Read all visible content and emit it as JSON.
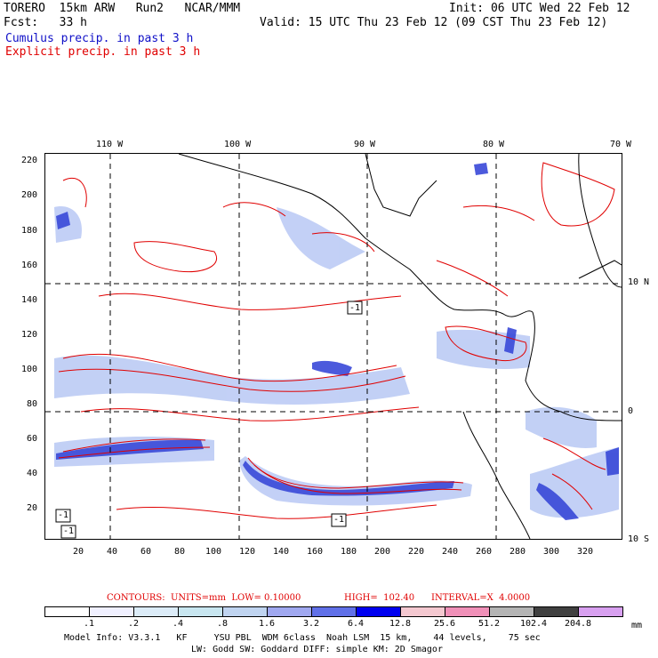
{
  "header": {
    "model": "TORERO  15km ARW   Run2   NCAR/MMM",
    "forecast": "Fcst:   33 h",
    "init": "Init: 06 UTC Wed 22 Feb 12",
    "valid": "Valid: 15 UTC Thu 23 Feb 12 (09 CST Thu 23 Feb 12)",
    "field1": "Cumulus precip. in past 3 h",
    "field2": "Explicit precip. in past 3 h"
  },
  "colors": {
    "cumulus": "#1010c8",
    "explicit": "#e00000"
  },
  "axes": {
    "lon_labels": [
      "110 W",
      "100 W",
      "90 W",
      "80 W",
      "70 W"
    ],
    "lat_labels": [
      "10 N",
      "0",
      "10 S"
    ],
    "y_ticks": [
      "220",
      "200",
      "180",
      "160",
      "140",
      "120",
      "100",
      "80",
      "60",
      "40",
      "20"
    ],
    "x_ticks": [
      "20",
      "40",
      "60",
      "80",
      "100",
      "120",
      "140",
      "160",
      "180",
      "200",
      "220",
      "240",
      "260",
      "280",
      "300",
      "320"
    ]
  },
  "map": {
    "contour_labels": [
      "-1",
      "-1",
      "-1",
      "-1"
    ]
  },
  "legend": {
    "contours": "CONTOURS:  UNITS=mm  LOW= 0.10000",
    "high": "HIGH=  102.40",
    "interval": "INTERVAL=X  4.0000",
    "levels": [
      ".1",
      ".2",
      ".4",
      ".8",
      "1.6",
      "3.2",
      "6.4",
      "12.8",
      "25.6",
      "51.2",
      "102.4",
      "204.8"
    ],
    "units": "mm",
    "colors": [
      "#ffffff",
      "#f0f0ff",
      "#dcecf8",
      "#c8e6f0",
      "#c0d4f0",
      "#a0a8f0",
      "#6070e8",
      "#0000f0",
      "#f4c8d0",
      "#f090b8",
      "#b4b4b4",
      "#404040",
      "#d8a0f0"
    ]
  },
  "footer": {
    "line1": "Model Info: V3.3.1   KF     YSU PBL  WDM 6class  Noah LSM  15 km,    44 levels,    75 sec",
    "line2": "LW: Godd SW: Goddard DIFF: simple KM: 2D Smagor"
  }
}
